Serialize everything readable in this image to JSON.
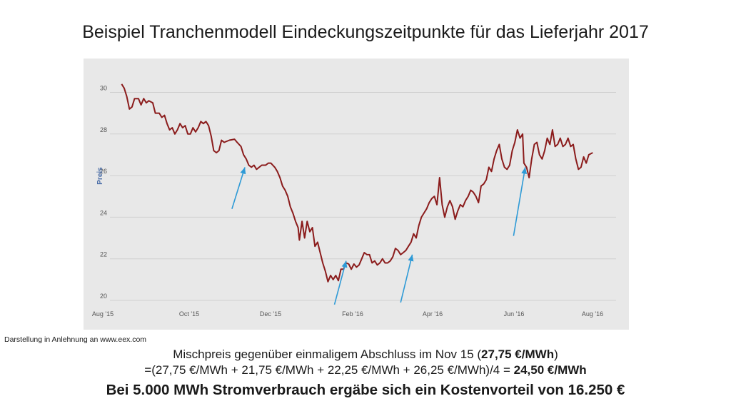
{
  "title": "Beispiel Tranchenmodell Eindeckungszeitpunkte für das Lieferjahr 2017",
  "source_note": "Darstellung in Anlehnung an www.eex.com",
  "mix_line": {
    "pre": "Mischpreis gegenüber einmaligem Abschluss im Nov 15 (",
    "bold": "27,75 €/MWh",
    "post": ")"
  },
  "formula_line": {
    "pre": "=(27,75 €/MWh + 21,75 €/MWh + 22,25 €/MWh + 26,25 €/MWh)/4 = ",
    "bold": "24,50 €/MWh"
  },
  "result_line": "Bei 5.000 MWh Stromverbrauch ergäbe sich ein Kostenvorteil von 16.250 €",
  "colors": {
    "line": "#8b1c1c",
    "arrow": "#2e9ad6",
    "grid": "#d0d0d0",
    "plot_bg": "#e8e8e8"
  },
  "chart_data": {
    "type": "line",
    "ylabel": "Preis",
    "ylim": [
      20,
      30.6
    ],
    "yticks": [
      "20",
      "22",
      "24",
      "26",
      "28",
      "30"
    ],
    "xticks": [
      "Aug '15",
      "Oct '15",
      "Dec '15",
      "Feb '16",
      "Apr '16",
      "Jun '16",
      "Aug '16"
    ],
    "x_unit": "days since 2015-08-01",
    "xlim": [
      0,
      390
    ],
    "grid": true,
    "series": [
      {
        "points": [
          [
            9,
            30.4
          ],
          [
            11,
            30.2
          ],
          [
            13,
            29.8
          ],
          [
            15,
            29.2
          ],
          [
            17,
            29.3
          ],
          [
            19,
            29.7
          ],
          [
            22,
            29.7
          ],
          [
            24,
            29.4
          ],
          [
            26,
            29.7
          ],
          [
            28,
            29.5
          ],
          [
            30,
            29.6
          ],
          [
            33,
            29.5
          ],
          [
            35,
            29.0
          ],
          [
            38,
            29.0
          ],
          [
            40,
            28.8
          ],
          [
            42,
            28.9
          ],
          [
            44,
            28.5
          ],
          [
            46,
            28.2
          ],
          [
            48,
            28.3
          ],
          [
            50,
            28.0
          ],
          [
            52,
            28.2
          ],
          [
            54,
            28.5
          ],
          [
            56,
            28.3
          ],
          [
            58,
            28.4
          ],
          [
            60,
            28.0
          ],
          [
            62,
            28.0
          ],
          [
            64,
            28.3
          ],
          [
            66,
            28.1
          ],
          [
            68,
            28.3
          ],
          [
            70,
            28.6
          ],
          [
            72,
            28.5
          ],
          [
            74,
            28.6
          ],
          [
            76,
            28.4
          ],
          [
            78,
            27.9
          ],
          [
            80,
            27.2
          ],
          [
            82,
            27.1
          ],
          [
            84,
            27.2
          ],
          [
            86,
            27.7
          ],
          [
            88,
            27.6
          ],
          [
            92,
            27.7
          ],
          [
            96,
            27.75
          ],
          [
            98,
            27.6
          ],
          [
            101,
            27.4
          ],
          [
            103,
            27.0
          ],
          [
            105,
            26.8
          ],
          [
            107,
            26.5
          ],
          [
            109,
            26.4
          ],
          [
            111,
            26.5
          ],
          [
            113,
            26.3
          ],
          [
            117,
            26.5
          ],
          [
            120,
            26.5
          ],
          [
            122,
            26.6
          ],
          [
            124,
            26.6
          ],
          [
            127,
            26.4
          ],
          [
            129,
            26.2
          ],
          [
            131,
            25.9
          ],
          [
            133,
            25.5
          ],
          [
            135,
            25.3
          ],
          [
            137,
            25.0
          ],
          [
            139,
            24.5
          ],
          [
            141,
            24.2
          ],
          [
            143,
            23.8
          ],
          [
            145,
            23.5
          ],
          [
            146,
            22.9
          ],
          [
            148,
            23.8
          ],
          [
            150,
            23.0
          ],
          [
            152,
            23.8
          ],
          [
            154,
            23.3
          ],
          [
            156,
            23.5
          ],
          [
            158,
            22.6
          ],
          [
            160,
            22.8
          ],
          [
            162,
            22.3
          ],
          [
            164,
            21.8
          ],
          [
            166,
            21.4
          ],
          [
            168,
            20.9
          ],
          [
            170,
            21.2
          ],
          [
            172,
            21.0
          ],
          [
            174,
            21.2
          ],
          [
            176,
            20.95
          ],
          [
            178,
            21.5
          ],
          [
            180,
            21.5
          ],
          [
            182,
            21.8
          ],
          [
            184,
            21.75
          ],
          [
            186,
            21.5
          ],
          [
            188,
            21.75
          ],
          [
            190,
            21.6
          ],
          [
            192,
            21.7
          ],
          [
            194,
            22.0
          ],
          [
            196,
            22.3
          ],
          [
            198,
            22.2
          ],
          [
            200,
            22.2
          ],
          [
            202,
            21.8
          ],
          [
            204,
            21.9
          ],
          [
            206,
            21.7
          ],
          [
            208,
            21.8
          ],
          [
            210,
            22.0
          ],
          [
            212,
            21.8
          ],
          [
            214,
            21.8
          ],
          [
            216,
            21.9
          ],
          [
            218,
            22.1
          ],
          [
            220,
            22.5
          ],
          [
            222,
            22.4
          ],
          [
            224,
            22.2
          ],
          [
            226,
            22.3
          ],
          [
            228,
            22.4
          ],
          [
            230,
            22.6
          ],
          [
            232,
            22.8
          ],
          [
            234,
            23.2
          ],
          [
            236,
            23.0
          ],
          [
            238,
            23.6
          ],
          [
            240,
            24.0
          ],
          [
            242,
            24.2
          ],
          [
            244,
            24.4
          ],
          [
            246,
            24.7
          ],
          [
            248,
            24.9
          ],
          [
            250,
            25.0
          ],
          [
            252,
            24.6
          ],
          [
            254,
            25.9
          ],
          [
            256,
            24.6
          ],
          [
            258,
            24.0
          ],
          [
            260,
            24.5
          ],
          [
            262,
            24.8
          ],
          [
            264,
            24.5
          ],
          [
            266,
            23.9
          ],
          [
            268,
            24.3
          ],
          [
            270,
            24.6
          ],
          [
            272,
            24.5
          ],
          [
            274,
            24.8
          ],
          [
            276,
            25.0
          ],
          [
            278,
            25.3
          ],
          [
            280,
            25.2
          ],
          [
            282,
            25.0
          ],
          [
            284,
            24.7
          ],
          [
            286,
            25.5
          ],
          [
            288,
            25.6
          ],
          [
            290,
            25.8
          ],
          [
            292,
            26.4
          ],
          [
            294,
            26.2
          ],
          [
            296,
            26.8
          ],
          [
            298,
            27.2
          ],
          [
            300,
            27.5
          ],
          [
            302,
            26.8
          ],
          [
            304,
            26.4
          ],
          [
            306,
            26.3
          ],
          [
            308,
            26.5
          ],
          [
            310,
            27.2
          ],
          [
            312,
            27.6
          ],
          [
            314,
            28.2
          ],
          [
            316,
            27.8
          ],
          [
            318,
            28.0
          ],
          [
            319,
            26.6
          ],
          [
            321,
            26.4
          ],
          [
            323,
            25.9
          ],
          [
            325,
            26.8
          ],
          [
            327,
            27.5
          ],
          [
            329,
            27.6
          ],
          [
            331,
            27.0
          ],
          [
            333,
            26.8
          ],
          [
            335,
            27.2
          ],
          [
            337,
            27.8
          ],
          [
            339,
            27.5
          ],
          [
            341,
            28.2
          ],
          [
            343,
            27.4
          ],
          [
            345,
            27.5
          ],
          [
            347,
            27.8
          ],
          [
            349,
            27.4
          ],
          [
            351,
            27.5
          ],
          [
            353,
            27.8
          ],
          [
            355,
            27.4
          ],
          [
            357,
            27.5
          ],
          [
            359,
            26.8
          ],
          [
            361,
            26.3
          ],
          [
            363,
            26.4
          ],
          [
            365,
            26.9
          ],
          [
            367,
            26.6
          ],
          [
            369,
            27.0
          ],
          [
            372,
            27.1
          ]
        ]
      }
    ],
    "arrows": [
      {
        "from": [
          94,
          24.4
        ],
        "to": [
          104,
          26.4
        ]
      },
      {
        "from": [
          173,
          19.8
        ],
        "to": [
          182,
          21.9
        ]
      },
      {
        "from": [
          224,
          19.9
        ],
        "to": [
          233,
          22.2
        ]
      },
      {
        "from": [
          311,
          23.1
        ],
        "to": [
          320,
          26.4
        ]
      }
    ]
  }
}
